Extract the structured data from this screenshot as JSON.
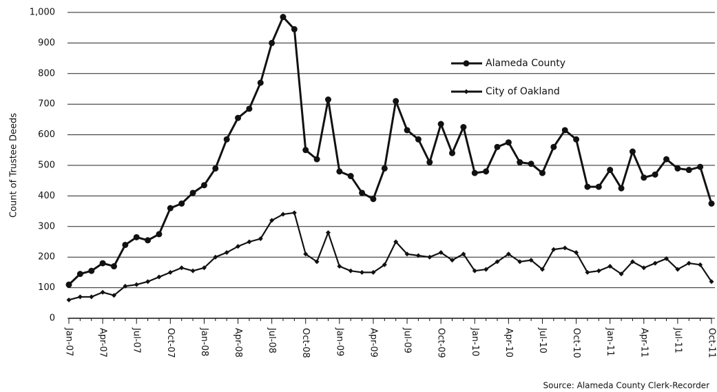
{
  "chart_data": {
    "type": "line",
    "y_label": "Count of Trustee Deeds",
    "source": "Source: Alameda County Clerk-Recorder",
    "categories": [
      "Jan-07",
      null,
      null,
      "Apr-07",
      null,
      null,
      "Jul-07",
      null,
      null,
      "Oct-07",
      null,
      null,
      "Jan-08",
      null,
      null,
      "Apr-08",
      null,
      null,
      "Jul-08",
      null,
      null,
      "Oct-08",
      null,
      null,
      "Jan-09",
      null,
      null,
      "Apr-09",
      null,
      null,
      "Jul-09",
      null,
      null,
      "Oct-09",
      null,
      null,
      "Jan-10",
      null,
      null,
      "Apr-10",
      null,
      null,
      "Jul-10",
      null,
      null,
      "Oct-10",
      null,
      null,
      "Jan-11",
      null,
      null,
      "Apr-11",
      null,
      null,
      "Jul-11",
      null,
      null,
      "Oct-11"
    ],
    "series": [
      {
        "name": "Alameda County",
        "color": "#111111",
        "marker": "circle",
        "values": [
          110,
          145,
          155,
          180,
          170,
          240,
          265,
          255,
          275,
          360,
          375,
          410,
          435,
          490,
          585,
          655,
          685,
          770,
          900,
          985,
          945,
          550,
          520,
          715,
          480,
          465,
          410,
          390,
          490,
          710,
          615,
          585,
          510,
          635,
          540,
          625,
          475,
          480,
          560,
          575,
          510,
          505,
          475,
          560,
          615,
          585,
          430,
          430,
          485,
          425,
          545,
          460,
          470,
          520,
          490,
          485,
          495,
          375
        ]
      },
      {
        "name": "City of Oakland",
        "color": "#111111",
        "marker": "diamond",
        "values": [
          60,
          70,
          70,
          85,
          75,
          105,
          110,
          120,
          135,
          150,
          165,
          155,
          165,
          200,
          215,
          235,
          250,
          260,
          320,
          340,
          345,
          210,
          185,
          280,
          170,
          155,
          150,
          150,
          175,
          250,
          210,
          205,
          200,
          215,
          190,
          210,
          155,
          160,
          185,
          210,
          185,
          190,
          160,
          225,
          230,
          215,
          150,
          155,
          170,
          145,
          185,
          165,
          180,
          195,
          160,
          180,
          175,
          120
        ]
      }
    ],
    "ylim": [
      0,
      1000
    ],
    "yticks": [
      0,
      100,
      200,
      300,
      400,
      500,
      600,
      700,
      800,
      900,
      {
        "value": 1000,
        "label": "1,000"
      }
    ],
    "grid": true
  }
}
